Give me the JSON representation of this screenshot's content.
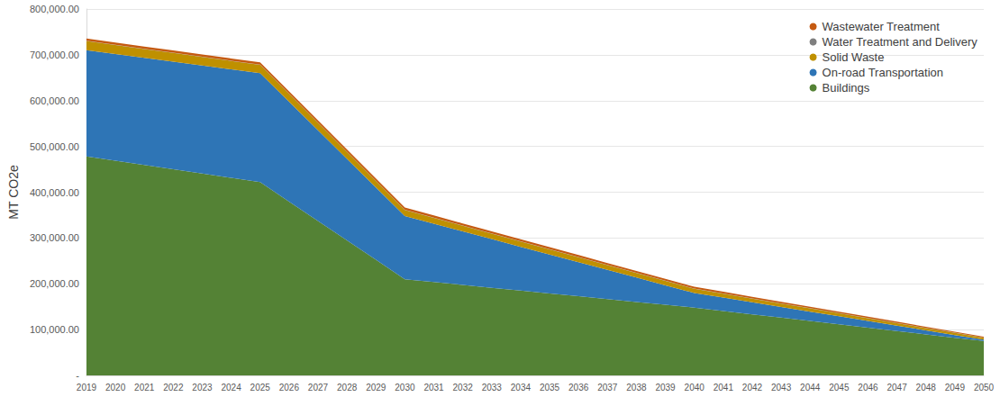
{
  "chart_data": {
    "type": "area",
    "stacked": true,
    "grid": true,
    "legend": "top-right",
    "y_label": "MT CO2e",
    "categories": [
      "2019",
      "2020",
      "2021",
      "2022",
      "2023",
      "2024",
      "2025",
      "2026",
      "2027",
      "2028",
      "2029",
      "2030",
      "2031",
      "2032",
      "2033",
      "2034",
      "2035",
      "2036",
      "2037",
      "2038",
      "2039",
      "2040",
      "2041",
      "2042",
      "2043",
      "2044",
      "2045",
      "2046",
      "2047",
      "2048",
      "2049",
      "2050"
    ],
    "ylim": [
      0,
      800000
    ],
    "yticks": [
      {
        "value": 0,
        "label": "-"
      },
      {
        "value": 100000,
        "label": "100,000.00"
      },
      {
        "value": 200000,
        "label": "200,000.00"
      },
      {
        "value": 300000,
        "label": "300,000.00"
      },
      {
        "value": 400000,
        "label": "400,000.00"
      },
      {
        "value": 500000,
        "label": "500,000.00"
      },
      {
        "value": 600000,
        "label": "600,000.00"
      },
      {
        "value": 700000,
        "label": "700,000.00"
      },
      {
        "value": 800000,
        "label": "800,000.00"
      }
    ],
    "series": [
      {
        "name": "Buildings",
        "color": "#548235",
        "values": [
          478000,
          468700,
          459300,
          450000,
          440700,
          431300,
          422000,
          379600,
          337200,
          294800,
          252400,
          210000,
          203800,
          197600,
          191400,
          185200,
          179000,
          172800,
          166600,
          160400,
          154200,
          148000,
          140700,
          133400,
          126100,
          118800,
          111500,
          104200,
          96900,
          89600,
          82300,
          75000
        ]
      },
      {
        "name": "On-road Transportation",
        "color": "#2e75b6",
        "values": [
          232000,
          233000,
          234000,
          235000,
          236000,
          237000,
          238000,
          218000,
          198000,
          178000,
          158000,
          138000,
          127400,
          116800,
          106200,
          95600,
          85000,
          74400,
          63800,
          53200,
          42600,
          32000,
          29100,
          26200,
          23300,
          20400,
          17500,
          14600,
          11700,
          8800,
          5900,
          3000
        ]
      },
      {
        "name": "Solid Waste",
        "color": "#bf9000",
        "values": [
          20000,
          19700,
          19300,
          19000,
          18700,
          18300,
          18000,
          17000,
          16000,
          15000,
          14000,
          13000,
          12600,
          12200,
          11800,
          11400,
          11000,
          10600,
          10200,
          9800,
          9400,
          9000,
          8500,
          8000,
          7500,
          7000,
          6500,
          6000,
          5500,
          5000,
          4500,
          4000
        ]
      },
      {
        "name": "Water Treatment and Delivery",
        "color": "#7f7f7f",
        "values": [
          500,
          500,
          500,
          500,
          500,
          500,
          500,
          500,
          500,
          500,
          500,
          500,
          500,
          500,
          500,
          500,
          500,
          500,
          500,
          500,
          500,
          500,
          500,
          500,
          500,
          500,
          500,
          500,
          500,
          500,
          500,
          500
        ]
      },
      {
        "name": "Wastewater Treatment",
        "color": "#c55a11",
        "values": [
          5000,
          5000,
          5000,
          5000,
          5000,
          5000,
          5000,
          5000,
          5000,
          5000,
          5000,
          5000,
          4900,
          4800,
          4700,
          4600,
          4500,
          4400,
          4300,
          4200,
          4100,
          4000,
          3800,
          3600,
          3400,
          3200,
          3000,
          2800,
          2600,
          2400,
          2200,
          2000
        ]
      }
    ]
  }
}
